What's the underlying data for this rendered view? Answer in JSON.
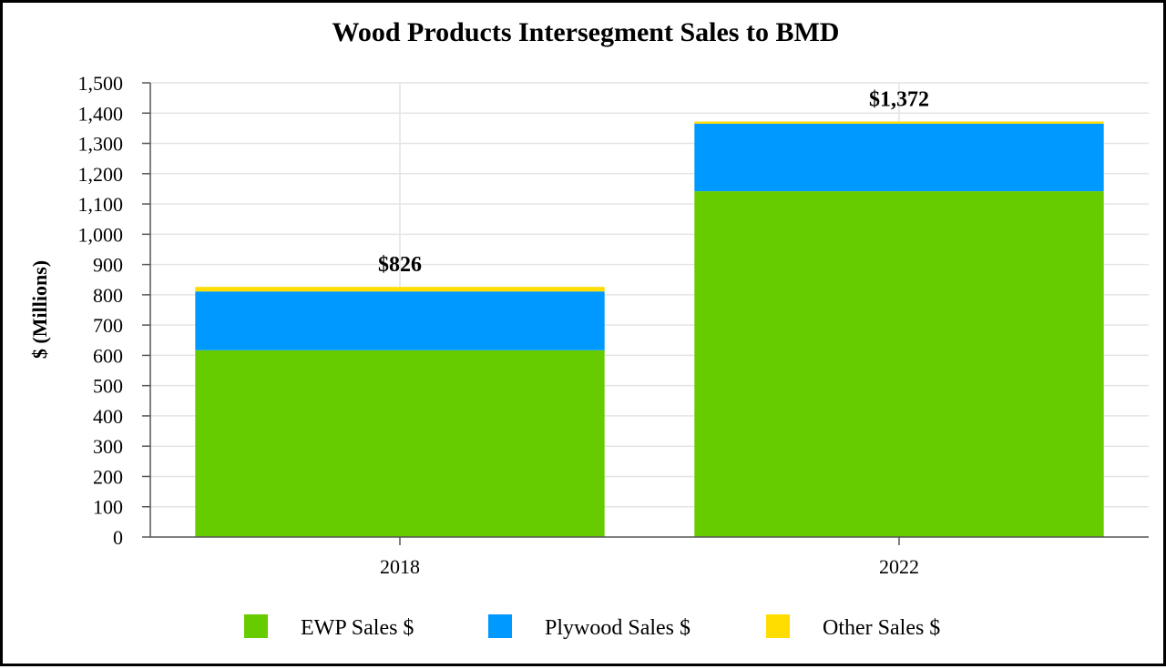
{
  "chart_data": {
    "type": "bar",
    "stacked": true,
    "title": "Wood Products Intersegment Sales to BMD",
    "xlabel": "",
    "ylabel": "$ (Millions)",
    "ylim": [
      0,
      1500
    ],
    "ytick_step": 100,
    "categories": [
      "2018",
      "2022"
    ],
    "series": [
      {
        "name": "EWP Sales $",
        "color": "#66cc00",
        "values": [
          617,
          1142
        ]
      },
      {
        "name": "Plywood Sales $",
        "color": "#0099ff",
        "values": [
          194,
          223
        ]
      },
      {
        "name": "Other Sales $",
        "color": "#ffdd00",
        "values": [
          15,
          7
        ]
      }
    ],
    "totals": [
      "$826",
      "$1,372"
    ],
    "legend_position": "bottom",
    "grid": true
  }
}
